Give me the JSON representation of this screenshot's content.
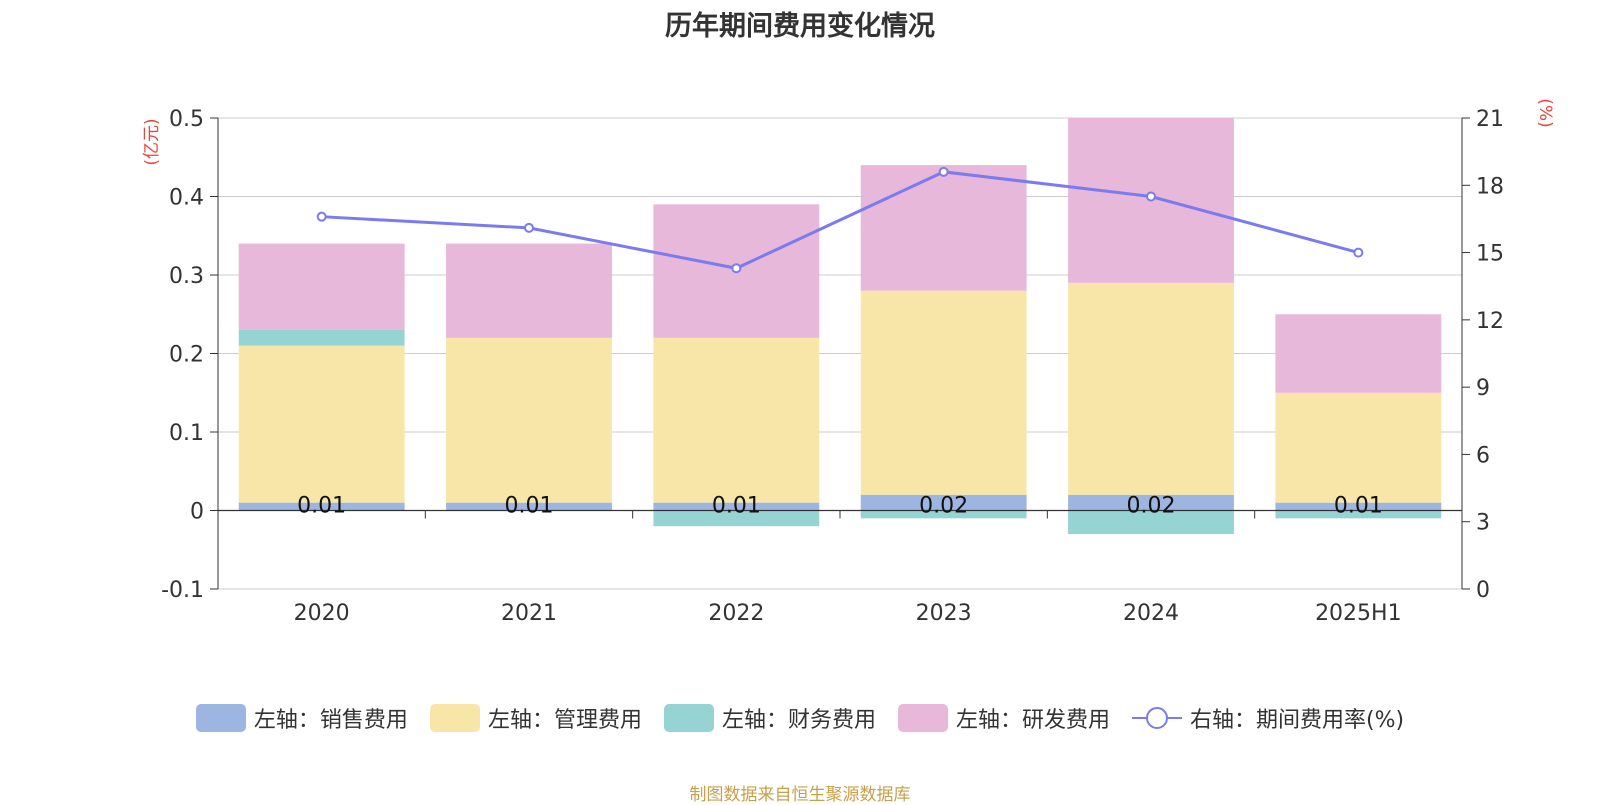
{
  "chart_data": {
    "type": "bar",
    "title": "历年期间费用变化情况",
    "categories": [
      "2020",
      "2021",
      "2022",
      "2023",
      "2024",
      "2025H1"
    ],
    "y_left": {
      "unit_label": "(亿元)",
      "range": [
        -0.1,
        0.5
      ],
      "ticks": [
        "0.5",
        "0.4",
        "0.3",
        "0.2",
        "0.1",
        "0",
        "-0.1"
      ]
    },
    "y_right": {
      "unit_label": "(%)",
      "range": [
        0,
        21
      ],
      "ticks": [
        "21",
        "18",
        "15",
        "12",
        "9",
        "6",
        "3",
        "0"
      ]
    },
    "grid": true,
    "legend_position": "bottom",
    "series": [
      {
        "name": "左轴：销售费用",
        "type": "bar",
        "stack": true,
        "axis": "left",
        "color": "#9db5e1",
        "values": [
          0.01,
          0.01,
          0.01,
          0.02,
          0.02,
          0.01
        ],
        "labels": [
          "0.01",
          "0.01",
          "0.01",
          "0.02",
          "0.02",
          "0.01"
        ]
      },
      {
        "name": "左轴：管理费用",
        "type": "bar",
        "stack": true,
        "axis": "left",
        "color": "#f7e6a8",
        "values": [
          0.2,
          0.21,
          0.21,
          0.26,
          0.27,
          0.14
        ]
      },
      {
        "name": "左轴：财务费用",
        "type": "bar",
        "stack": true,
        "axis": "left",
        "color": "#96d4d4",
        "values": [
          0.02,
          0.0,
          -0.02,
          -0.01,
          -0.03,
          -0.01
        ]
      },
      {
        "name": "左轴：研发费用",
        "type": "bar",
        "stack": true,
        "axis": "left",
        "color": "#e7b8d9",
        "values": [
          0.11,
          0.12,
          0.17,
          0.16,
          0.21,
          0.1
        ]
      },
      {
        "name": "右轴：期间费用率(%)",
        "type": "line",
        "axis": "right",
        "color": "#7b7bf0",
        "values": [
          16.6,
          16.1,
          14.3,
          18.6,
          17.5,
          15.0
        ]
      }
    ]
  },
  "footer": {
    "source": "制图数据来自恒生聚源数据库"
  }
}
